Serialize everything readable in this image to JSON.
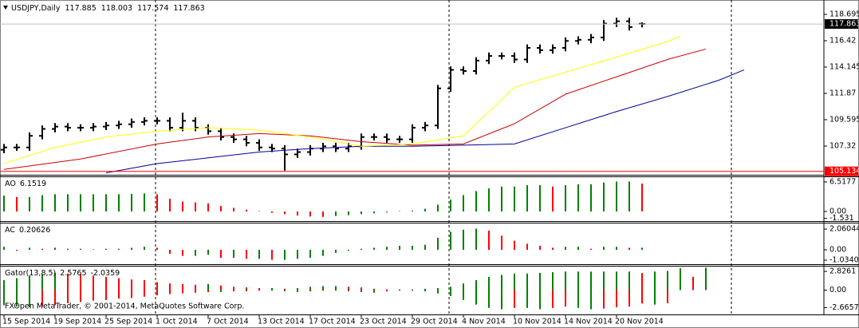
{
  "footer": "FXOpen MetaTrader, © 2001-2014, MetaQuotes Software Corp.",
  "chart_data": [
    {
      "type": "ohlc",
      "title": "USDJPY,Daily",
      "categories": [
        "15 Sep 2014",
        null,
        null,
        null,
        "19 Sep 2014",
        null,
        null,
        null,
        "25 Sep 2014",
        null,
        null,
        null,
        "1 Oct 2014",
        null,
        null,
        null,
        "7 Oct 2014",
        null,
        null,
        null,
        "13 Oct 2014",
        null,
        null,
        null,
        "17 Oct 2014",
        null,
        null,
        null,
        "23 Oct 2014",
        null,
        null,
        null,
        "29 Oct 2014",
        null,
        null,
        null,
        "4 Nov 2014",
        null,
        null,
        null,
        "10 Nov 2014",
        null,
        null,
        null,
        "14 Nov 2014",
        null,
        null,
        null,
        "20 Nov 2014",
        null,
        null
      ],
      "open": [
        107.0,
        107.2,
        107.2,
        108.2,
        108.8,
        109.0,
        108.9,
        108.9,
        109.0,
        109.1,
        109.2,
        109.4,
        109.5,
        109.5,
        108.9,
        109.5,
        108.9,
        108.6,
        108.1,
        107.9,
        107.6,
        107.2,
        107.1,
        106.6,
        106.8,
        107.1,
        107.3,
        107.1,
        107.3,
        108.1,
        108.1,
        107.9,
        107.9,
        108.9,
        109.1,
        112.3,
        113.9,
        113.8,
        114.7,
        115.1,
        115.1,
        114.8,
        115.8,
        115.6,
        115.8,
        116.4,
        116.5,
        116.7,
        117.9,
        118.1,
        117.885
      ],
      "high": [
        107.5,
        107.5,
        108.5,
        109.1,
        109.3,
        109.3,
        109.2,
        109.3,
        109.4,
        109.5,
        109.7,
        109.8,
        109.8,
        109.8,
        110.2,
        109.8,
        109.2,
        108.9,
        108.4,
        108.2,
        107.9,
        107.5,
        107.4,
        107.1,
        107.4,
        107.6,
        107.6,
        107.6,
        108.4,
        108.4,
        108.4,
        108.2,
        109.2,
        109.4,
        112.6,
        114.2,
        114.2,
        115.0,
        115.4,
        115.4,
        115.4,
        116.1,
        116.1,
        116.1,
        116.7,
        116.8,
        117.0,
        118.2,
        118.4,
        118.4,
        118.003
      ],
      "low": [
        106.7,
        106.9,
        106.9,
        107.9,
        108.5,
        108.6,
        108.6,
        108.6,
        108.7,
        108.8,
        108.9,
        109.1,
        109.2,
        108.6,
        108.6,
        108.6,
        108.3,
        107.8,
        107.6,
        107.3,
        106.9,
        106.8,
        105.2,
        106.3,
        106.5,
        106.8,
        106.8,
        106.8,
        107.0,
        107.8,
        107.6,
        107.6,
        107.6,
        108.6,
        108.8,
        112.0,
        113.5,
        113.5,
        114.4,
        114.8,
        114.5,
        114.5,
        115.3,
        115.3,
        115.5,
        116.1,
        116.2,
        116.4,
        117.6,
        117.3,
        117.574
      ],
      "close": [
        107.2,
        107.2,
        108.2,
        108.8,
        109.0,
        108.9,
        108.9,
        109.0,
        109.1,
        109.2,
        109.4,
        109.5,
        109.5,
        108.9,
        109.5,
        108.9,
        108.6,
        108.1,
        107.9,
        107.6,
        107.2,
        107.1,
        106.6,
        106.8,
        107.1,
        107.3,
        107.1,
        107.3,
        108.1,
        108.1,
        107.9,
        107.9,
        108.9,
        109.1,
        112.3,
        113.9,
        113.8,
        114.7,
        115.1,
        115.1,
        114.8,
        115.8,
        115.6,
        115.8,
        116.4,
        116.5,
        116.7,
        117.9,
        118.1,
        117.6,
        117.863
      ],
      "bar_color": "#000000",
      "series": [
        {
          "color": "#000099",
          "x": [
            8,
            12,
            16,
            20,
            24,
            28,
            32,
            36,
            40,
            44,
            48,
            52,
            56,
            58
          ],
          "values": [
            105.0,
            105.8,
            106.3,
            106.8,
            107.1,
            107.3,
            107.3,
            107.4,
            107.5,
            108.9,
            110.3,
            111.6,
            113.0,
            113.9
          ]
        },
        {
          "color": "#cc0000",
          "x": [
            0,
            6,
            12,
            16,
            20,
            24,
            28,
            32,
            36,
            40,
            44,
            48,
            52,
            55
          ],
          "values": [
            105.3,
            106.2,
            107.5,
            108.1,
            108.4,
            108.2,
            107.7,
            107.4,
            107.5,
            109.25,
            111.8,
            113.3,
            114.8,
            115.7
          ]
        },
        {
          "color": "#ffff00",
          "x": [
            0,
            4,
            8,
            12,
            16,
            20,
            24,
            28,
            32,
            36,
            40,
            44,
            48,
            52,
            53
          ],
          "values": [
            105.8,
            107.2,
            108.1,
            108.6,
            108.9,
            108.7,
            108.1,
            107.3,
            107.5,
            108.2,
            112.4,
            113.7,
            115.0,
            116.35,
            116.8
          ]
        }
      ],
      "hline": {
        "value": 105.134,
        "color": "#ff0000"
      },
      "ylim": [
        104.976,
        119.798
      ],
      "yticks": [
        118.695,
        116.42,
        114.145,
        111.87,
        109.595,
        107.32
      ]
    },
    {
      "type": "histogram",
      "title": "AO",
      "values": [
        3.5,
        3.2,
        3.2,
        3.6,
        3.8,
        3.8,
        3.8,
        3.8,
        3.8,
        3.8,
        3.9,
        4.0,
        3.8,
        2.8,
        2.2,
        2.0,
        1.8,
        1.2,
        0.8,
        0.4,
        0.1,
        -0.3,
        -0.6,
        -0.9,
        -1.1,
        -1.2,
        -1.0,
        -0.8,
        -0.6,
        -0.4,
        -0.2,
        0.1,
        0.2,
        0.6,
        1.5,
        2.6,
        3.6,
        4.5,
        5.1,
        5.5,
        5.5,
        5.8,
        5.8,
        5.5,
        5.8,
        6.0,
        6.0,
        6.4,
        6.6,
        6.6,
        6.1519
      ],
      "up_color": "#008000",
      "down_color": "#ff0000",
      "ylim": [
        -1.94,
        7.57
      ],
      "yticks": [
        6.5177,
        {
          "value": 0,
          "label": "0.00"
        },
        -1.531
      ]
    },
    {
      "type": "histogram",
      "title": "AC",
      "values": [
        0.3,
        -0.1,
        0.2,
        0.1,
        0.2,
        0.1,
        0.1,
        0.05,
        0.1,
        0.1,
        0.2,
        0.3,
        0.2,
        -0.4,
        -0.6,
        -0.6,
        -0.5,
        -0.8,
        -0.8,
        -0.9,
        -0.9,
        -1.0,
        -1.0,
        -0.9,
        -0.8,
        -0.6,
        -0.3,
        -0.1,
        0.1,
        0.2,
        0.3,
        0.4,
        0.4,
        0.5,
        1.2,
        1.8,
        2.0,
        2.1,
        1.9,
        1.4,
        0.9,
        0.6,
        0.4,
        0.2,
        0.3,
        0.3,
        0.1,
        0.3,
        0.3,
        0.2,
        0.20626
      ],
      "up_color": "#008000",
      "down_color": "#ff0000",
      "ylim": [
        -1.35,
        2.62
      ],
      "yticks": [
        2.06044,
        {
          "value": 0,
          "label": "0.00"
        },
        -1.03403
      ]
    },
    {
      "type": "gator",
      "title": "Gator(13,8,5)",
      "series": [
        {
          "values": [
            1.5,
            1.8,
            2.2,
            2.4,
            2.6,
            2.5,
            2.4,
            2.2,
            2.0,
            1.8,
            1.6,
            1.5,
            1.2,
            1.0,
            0.9,
            0.8,
            0.9,
            0.7,
            0.5,
            0.4,
            0.3,
            0.3,
            0.2,
            0.3,
            0.5,
            0.6,
            0.6,
            0.5,
            0.4,
            0.2,
            0.1,
            0.1,
            0.1,
            0.2,
            0.3,
            0.5,
            1.0,
            1.5,
            2.0,
            2.3,
            2.5,
            2.5,
            2.6,
            2.7,
            2.8,
            2.8,
            2.8,
            2.8,
            2.8,
            2.8,
            2.5765,
            2.8,
            2.9,
            3.3,
            2.0,
            3.4
          ]
        },
        {
          "values": [
            -2.3,
            -2.5,
            -2.6,
            -2.5,
            -2.3,
            -2.0,
            -1.8,
            -1.6,
            -1.5,
            -1.3,
            -1.2,
            -1.0,
            -0.8,
            -0.6,
            -0.5,
            -0.4,
            -0.3,
            -0.3,
            -0.2,
            -0.2,
            -0.1,
            -0.1,
            -0.2,
            -0.3,
            -0.2,
            -0.1,
            -0.1,
            -0.2,
            -0.3,
            -0.4,
            -0.2,
            -0.1,
            -0.1,
            -0.2,
            -0.5,
            -0.9,
            -1.5,
            -2.2,
            -2.7,
            -2.9,
            -2.7,
            -2.7,
            -2.9,
            -2.7,
            -2.5,
            -2.7,
            -2.9,
            -2.8,
            -2.6,
            -2.5,
            -2.0359,
            -2.2,
            -2.0,
            null,
            null,
            null
          ]
        }
      ],
      "up_color": "#008000",
      "down_color": "#ff0000",
      "ylim": [
        -3.69,
        3.56
      ],
      "yticks": [
        2.8261,
        {
          "value": 0,
          "label": "0.00"
        },
        -2.6657
      ]
    }
  ]
}
